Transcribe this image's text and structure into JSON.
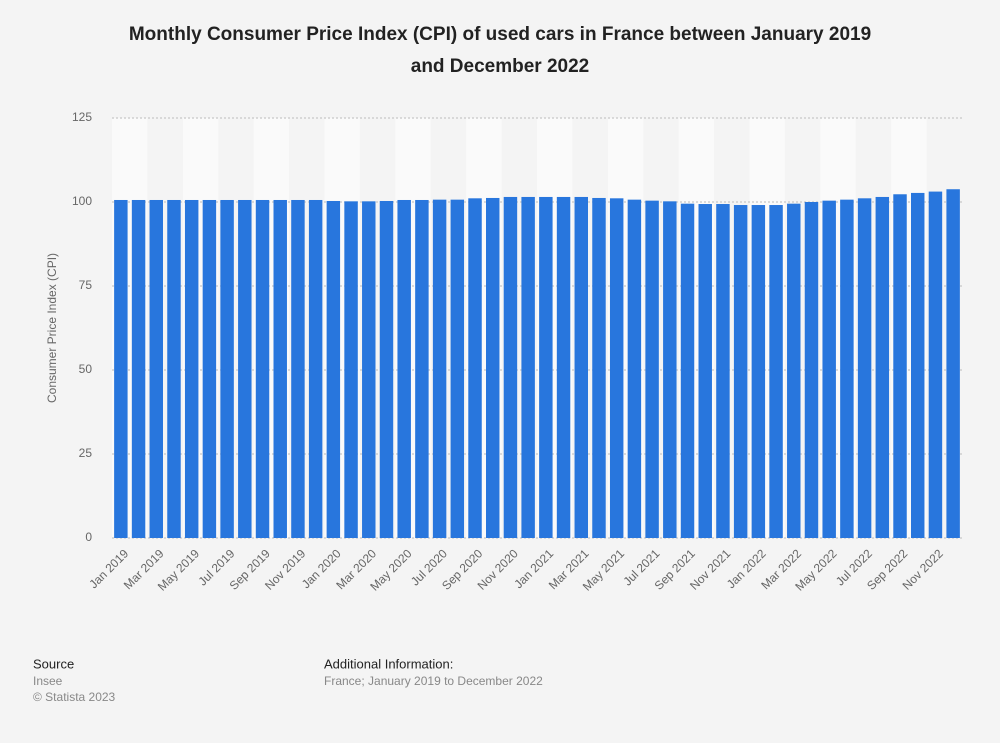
{
  "chart_data": {
    "type": "bar",
    "title": [
      "Monthly Consumer Price Index (CPI) of used cars in France between January 2019",
      "and December 2022"
    ],
    "y_label": "Consumer Price Index (CPI)",
    "categories": [
      "Jan 2019",
      null,
      "Mar 2019",
      null,
      "May 2019",
      null,
      "Jul 2019",
      null,
      "Sep 2019",
      null,
      "Nov 2019",
      null,
      "Jan 2020",
      null,
      "Mar 2020",
      null,
      "May 2020",
      null,
      "Jul 2020",
      null,
      "Sep 2020",
      null,
      "Nov 2020",
      null,
      "Jan 2021",
      null,
      "Mar 2021",
      null,
      "May 2021",
      null,
      "Jul 2021",
      null,
      "Sep 2021",
      null,
      "Nov 2021",
      null,
      "Jan 2022",
      null,
      "Mar 2022",
      null,
      "May 2022",
      null,
      "Jul 2022",
      null,
      "Sep 2022",
      null,
      "Nov 2022",
      null
    ],
    "values": [
      100.6,
      100.6,
      100.6,
      100.6,
      100.6,
      100.6,
      100.6,
      100.6,
      100.6,
      100.6,
      100.6,
      100.6,
      100.3,
      100.2,
      100.2,
      100.3,
      100.6,
      100.6,
      100.7,
      100.7,
      101.1,
      101.2,
      101.5,
      101.5,
      101.5,
      101.5,
      101.5,
      101.2,
      101.1,
      100.7,
      100.4,
      100.2,
      99.5,
      99.4,
      99.4,
      99.1,
      99.1,
      99.1,
      99.5,
      100.0,
      100.4,
      100.7,
      101.1,
      101.5,
      102.3,
      102.7,
      103.1,
      103.8
    ],
    "color": "#2876dd",
    "ylim": [
      0,
      125
    ],
    "yticks": [
      0,
      25,
      50,
      75,
      100,
      125
    ],
    "grid": true,
    "source_heading": "Source",
    "source": "Insee",
    "copyright": "© Statista 2023",
    "info_heading": "Additional Information:",
    "info": "France; January 2019 to December 2022"
  }
}
